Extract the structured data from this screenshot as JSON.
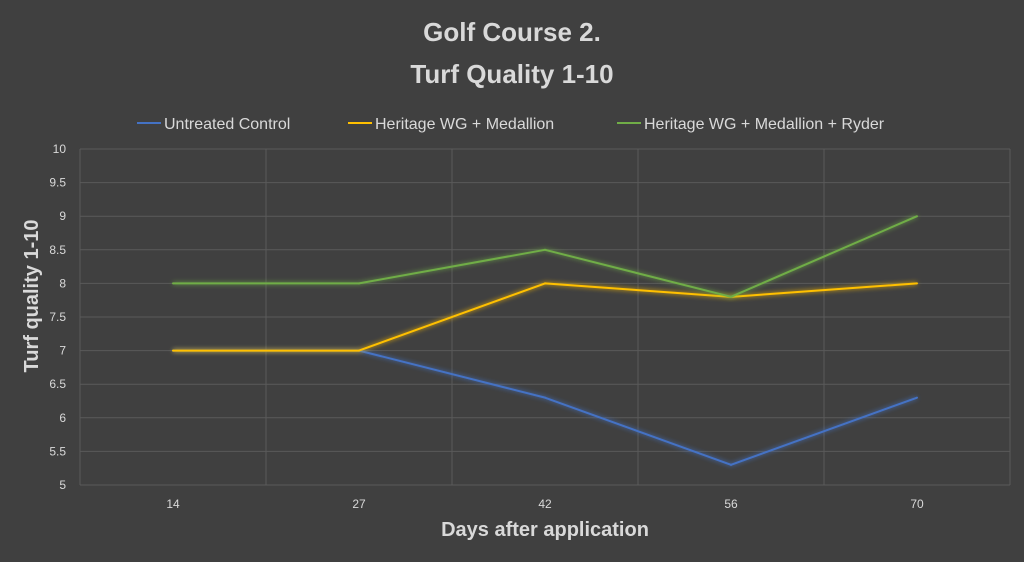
{
  "chart_data": {
    "type": "line",
    "title": "Golf Course 2.",
    "subtitle": "Turf Quality 1-10",
    "xlabel": "Days after application",
    "ylabel": "Turf quality 1-10",
    "categories": [
      "14",
      "27",
      "42",
      "56",
      "70"
    ],
    "ylim": [
      5,
      10
    ],
    "yticks": [
      "5",
      "5.5",
      "6",
      "6.5",
      "7",
      "7.5",
      "8",
      "8.5",
      "9",
      "9.5",
      "10"
    ],
    "grid": true,
    "legend_position": "top",
    "series": [
      {
        "name": "Untreated Control",
        "color": "#4472c4",
        "values": [
          7,
          7,
          6.3,
          5.3,
          6.3
        ]
      },
      {
        "name": "Heritage WG + Medallion",
        "color": "#ffc000",
        "values": [
          7,
          7,
          8,
          7.8,
          8
        ]
      },
      {
        "name": "Heritage WG + Medallion + Ryder",
        "color": "#70ad47",
        "values": [
          8,
          8,
          8.5,
          7.8,
          9
        ]
      }
    ]
  }
}
